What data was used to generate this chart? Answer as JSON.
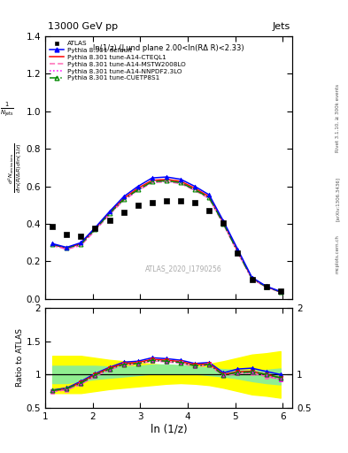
{
  "title_top": "13000 GeV pp",
  "title_right": "Jets",
  "annotation": "ln(1/z) (Lund plane 2.00<ln(RΔ R)<2.33)",
  "watermark": "ATLAS_2020_I1790256",
  "rivet_text": "Rivet 3.1.10, ≥ 300k events",
  "arxiv_text": "[arXiv:1306.3436]",
  "mcplots_text": "mcplots.cern.ch",
  "ylabel_ratio": "Ratio to ATLAS",
  "xlabel": "ln (1/z)",
  "xlim": [
    1.0,
    6.2
  ],
  "ylim_main": [
    0.0,
    1.4
  ],
  "ylim_ratio": [
    0.5,
    2.0
  ],
  "x_pts": [
    1.15,
    1.45,
    1.75,
    2.05,
    2.35,
    2.65,
    2.95,
    3.25,
    3.55,
    3.85,
    4.15,
    4.45,
    4.75,
    5.05,
    5.35,
    5.65,
    5.95
  ],
  "y_atlas": [
    0.385,
    0.345,
    0.335,
    0.375,
    0.42,
    0.46,
    0.5,
    0.515,
    0.525,
    0.525,
    0.515,
    0.47,
    0.405,
    0.245,
    0.105,
    0.065,
    0.04
  ],
  "y_default": [
    0.295,
    0.275,
    0.3,
    0.38,
    0.465,
    0.545,
    0.6,
    0.645,
    0.65,
    0.638,
    0.6,
    0.555,
    0.415,
    0.265,
    0.115,
    0.068,
    0.04
  ],
  "y_cteq": [
    0.29,
    0.27,
    0.295,
    0.375,
    0.46,
    0.535,
    0.59,
    0.632,
    0.637,
    0.627,
    0.59,
    0.545,
    0.405,
    0.255,
    0.11,
    0.065,
    0.038
  ],
  "y_mstw": [
    0.285,
    0.265,
    0.285,
    0.365,
    0.45,
    0.525,
    0.578,
    0.62,
    0.625,
    0.615,
    0.578,
    0.535,
    0.398,
    0.248,
    0.107,
    0.063,
    0.037
  ],
  "y_nnpdf": [
    0.288,
    0.268,
    0.288,
    0.368,
    0.452,
    0.528,
    0.58,
    0.622,
    0.627,
    0.618,
    0.58,
    0.538,
    0.4,
    0.25,
    0.108,
    0.064,
    0.037
  ],
  "y_cuetp": [
    0.292,
    0.272,
    0.292,
    0.372,
    0.455,
    0.53,
    0.582,
    0.625,
    0.63,
    0.62,
    0.582,
    0.54,
    0.402,
    0.252,
    0.109,
    0.065,
    0.038
  ],
  "ratio_default": [
    0.766,
    0.797,
    0.896,
    1.013,
    1.107,
    1.185,
    1.2,
    1.252,
    1.238,
    1.215,
    1.165,
    1.181,
    1.025,
    1.082,
    1.095,
    1.046,
    1.0
  ],
  "ratio_cteq": [
    0.753,
    0.783,
    0.881,
    1.0,
    1.095,
    1.163,
    1.18,
    1.228,
    1.214,
    1.195,
    1.146,
    1.16,
    1.0,
    1.041,
    1.048,
    1.0,
    0.95
  ],
  "ratio_mstw": [
    0.74,
    0.768,
    0.851,
    0.973,
    1.071,
    1.141,
    1.156,
    1.204,
    1.19,
    1.171,
    1.122,
    1.138,
    0.981,
    1.012,
    1.019,
    0.969,
    0.925
  ],
  "ratio_nnpdf": [
    0.748,
    0.776,
    0.86,
    0.981,
    1.076,
    1.148,
    1.16,
    1.208,
    1.195,
    1.177,
    1.127,
    1.145,
    0.988,
    1.02,
    1.029,
    0.985,
    0.925
  ],
  "ratio_cuetp": [
    0.758,
    0.788,
    0.871,
    0.991,
    1.083,
    1.152,
    1.164,
    1.214,
    1.2,
    1.181,
    1.131,
    1.149,
    0.992,
    1.029,
    1.038,
    1.0,
    0.95
  ],
  "band_yellow_lo": [
    0.72,
    0.72,
    0.72,
    0.75,
    0.78,
    0.8,
    0.82,
    0.84,
    0.86,
    0.87,
    0.86,
    0.84,
    0.8,
    0.75,
    0.7,
    0.68,
    0.65
  ],
  "band_yellow_hi": [
    1.28,
    1.28,
    1.28,
    1.25,
    1.22,
    1.2,
    1.18,
    1.16,
    1.14,
    1.13,
    1.14,
    1.16,
    1.2,
    1.25,
    1.3,
    1.32,
    1.35
  ],
  "band_green_lo": [
    0.87,
    0.87,
    0.9,
    0.93,
    0.95,
    0.97,
    0.99,
    1.01,
    1.02,
    1.02,
    1.01,
    0.99,
    0.97,
    0.94,
    0.9,
    0.87,
    0.85
  ],
  "band_green_hi": [
    1.13,
    1.13,
    1.13,
    1.13,
    1.12,
    1.12,
    1.13,
    1.15,
    1.15,
    1.14,
    1.12,
    1.1,
    1.08,
    1.07,
    1.06,
    1.07,
    1.09
  ],
  "color_default": "#0000ff",
  "color_cteq": "#ff0000",
  "color_mstw": "#ff69b4",
  "color_nnpdf": "#ff00ff",
  "color_cuetp": "#008800",
  "color_atlas": "#000000",
  "color_yellow": "#ffff00",
  "color_green": "#90ee90"
}
